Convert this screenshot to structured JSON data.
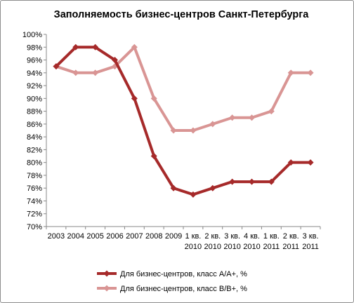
{
  "chart_data": {
    "type": "line",
    "title": "Заполняемость бизнес-центров Санкт-Петербурга",
    "xlabel": "",
    "ylabel": "",
    "ylim": [
      70,
      100
    ],
    "y_ticks": [
      70,
      72,
      74,
      76,
      78,
      80,
      82,
      84,
      86,
      88,
      90,
      92,
      94,
      96,
      98,
      100
    ],
    "y_tick_suffix": "%",
    "grid": false,
    "legend_position": "bottom",
    "categories": [
      [
        "2003"
      ],
      [
        "2004"
      ],
      [
        "2005"
      ],
      [
        "2006"
      ],
      [
        "2007"
      ],
      [
        "2008"
      ],
      [
        "2009"
      ],
      [
        "1 кв.",
        "2010"
      ],
      [
        "2 кв.",
        "2010"
      ],
      [
        "3 кв.",
        "2010"
      ],
      [
        "4 кв.",
        "2010"
      ],
      [
        "1 кв.",
        "2011"
      ],
      [
        "2 кв.",
        "2011"
      ],
      [
        "3 кв.",
        "2011"
      ]
    ],
    "series": [
      {
        "name": "Для бизнес-центров, класс А/А+, %",
        "color": "#a62a2a",
        "values": [
          95,
          98,
          98,
          96,
          90,
          81,
          76,
          75,
          76,
          77,
          77,
          77,
          80,
          80
        ]
      },
      {
        "name": "Для бизнес-центров, класс В/В+, %",
        "color": "#d99594",
        "values": [
          95,
          94,
          94,
          95,
          98,
          90,
          85,
          85,
          86,
          87,
          87,
          88,
          94,
          94
        ]
      }
    ]
  }
}
